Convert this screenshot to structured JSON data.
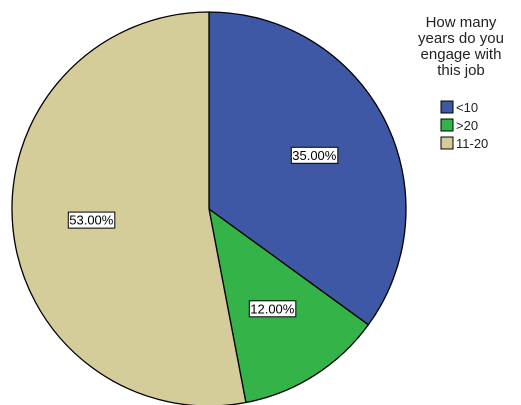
{
  "chart_data": {
    "type": "pie",
    "title": "",
    "legend": {
      "title": "How many years do you engage with this job",
      "title_lines": [
        "How many",
        "years do you",
        "engage with",
        "this job"
      ],
      "position": "top-right"
    },
    "series": [
      {
        "name": "How many years do you engage with this job",
        "categories": [
          "<10",
          ">20",
          "11-20"
        ],
        "values": [
          35.0,
          12.0,
          53.0
        ],
        "labels": [
          "35.00%",
          "12.00%",
          "53.00%"
        ],
        "colors": [
          "#3f58a6",
          "#34b348",
          "#d4cd99"
        ]
      }
    ],
    "start_angle_deg": 0,
    "direction": "clockwise",
    "outline_color": "#000000"
  }
}
